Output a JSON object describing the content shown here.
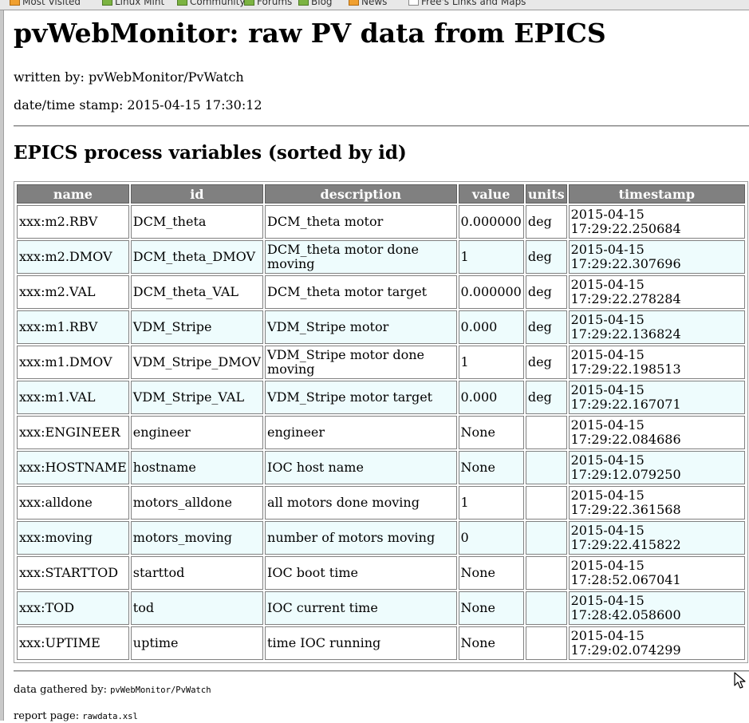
{
  "browser": {
    "bookmarks": [
      {
        "label": "Most Visited",
        "icon": "bookmark-icon"
      },
      {
        "label": "Linux Mint",
        "icon": "bookmark-icon"
      },
      {
        "label": "Community",
        "icon": "bookmark-icon"
      },
      {
        "label": "Forums",
        "icon": "bookmark-icon"
      },
      {
        "label": "Blog",
        "icon": "bookmark-icon"
      },
      {
        "label": "News",
        "icon": "rss-icon"
      },
      {
        "label": "Free's Links and Maps",
        "icon": "folder-icon"
      }
    ]
  },
  "page": {
    "title": "pvWebMonitor: raw PV data from EPICS",
    "written_by": "written by: pvWebMonitor/PvWatch",
    "datetime_stamp": "date/time stamp: 2015-04-15 17:30:12",
    "section_title": "EPICS process variables (sorted by id)"
  },
  "table": {
    "columns": [
      "name",
      "id",
      "description",
      "value",
      "units",
      "timestamp"
    ],
    "rows": [
      {
        "name": "xxx:m2.RBV",
        "id": "DCM_theta",
        "description": "DCM_theta motor",
        "value": "0.000000",
        "units": "deg",
        "ts_date": "2015-04-15",
        "ts_time": "17:29:22.250684"
      },
      {
        "name": "xxx:m2.DMOV",
        "id": "DCM_theta_DMOV",
        "description": "DCM_theta motor done moving",
        "value": "1",
        "units": "deg",
        "ts_date": "2015-04-15",
        "ts_time": "17:29:22.307696"
      },
      {
        "name": "xxx:m2.VAL",
        "id": "DCM_theta_VAL",
        "description": "DCM_theta motor target",
        "value": "0.000000",
        "units": "deg",
        "ts_date": "2015-04-15",
        "ts_time": "17:29:22.278284"
      },
      {
        "name": "xxx:m1.RBV",
        "id": "VDM_Stripe",
        "description": "VDM_Stripe motor",
        "value": "0.000",
        "units": "deg",
        "ts_date": "2015-04-15",
        "ts_time": "17:29:22.136824"
      },
      {
        "name": "xxx:m1.DMOV",
        "id": "VDM_Stripe_DMOV",
        "description": "VDM_Stripe motor done moving",
        "value": "1",
        "units": "deg",
        "ts_date": "2015-04-15",
        "ts_time": "17:29:22.198513"
      },
      {
        "name": "xxx:m1.VAL",
        "id": "VDM_Stripe_VAL",
        "description": "VDM_Stripe motor target",
        "value": "0.000",
        "units": "deg",
        "ts_date": "2015-04-15",
        "ts_time": "17:29:22.167071"
      },
      {
        "name": "xxx:ENGINEER",
        "id": "engineer",
        "description": "engineer",
        "value": "None",
        "units": "",
        "ts_date": "2015-04-15",
        "ts_time": "17:29:22.084686"
      },
      {
        "name": "xxx:HOSTNAME",
        "id": "hostname",
        "description": "IOC host name",
        "value": "None",
        "units": "",
        "ts_date": "2015-04-15",
        "ts_time": "17:29:12.079250"
      },
      {
        "name": "xxx:alldone",
        "id": "motors_alldone",
        "description": "all motors done moving",
        "value": "1",
        "units": "",
        "ts_date": "2015-04-15",
        "ts_time": "17:29:22.361568"
      },
      {
        "name": "xxx:moving",
        "id": "motors_moving",
        "description": "number of motors moving",
        "value": "0",
        "units": "",
        "ts_date": "2015-04-15",
        "ts_time": "17:29:22.415822"
      },
      {
        "name": "xxx:STARTTOD",
        "id": "starttod",
        "description": "IOC boot time",
        "value": "None",
        "units": "",
        "ts_date": "2015-04-15",
        "ts_time": "17:28:52.067041"
      },
      {
        "name": "xxx:TOD",
        "id": "tod",
        "description": "IOC current time",
        "value": "None",
        "units": "",
        "ts_date": "2015-04-15",
        "ts_time": "17:28:42.058600"
      },
      {
        "name": "xxx:UPTIME",
        "id": "uptime",
        "description": "time IOC running",
        "value": "None",
        "units": "",
        "ts_date": "2015-04-15",
        "ts_time": "17:29:02.074299"
      }
    ]
  },
  "footer": {
    "gathered_label": "data gathered by:",
    "gathered_value": "pvWebMonitor/PvWatch",
    "report_label": "report page:",
    "report_value": "rawdata.xsl"
  },
  "colors": {
    "header_bg": "#808080",
    "row_alt_bg": "#eefcfd",
    "row_bg": "#ffffff"
  }
}
